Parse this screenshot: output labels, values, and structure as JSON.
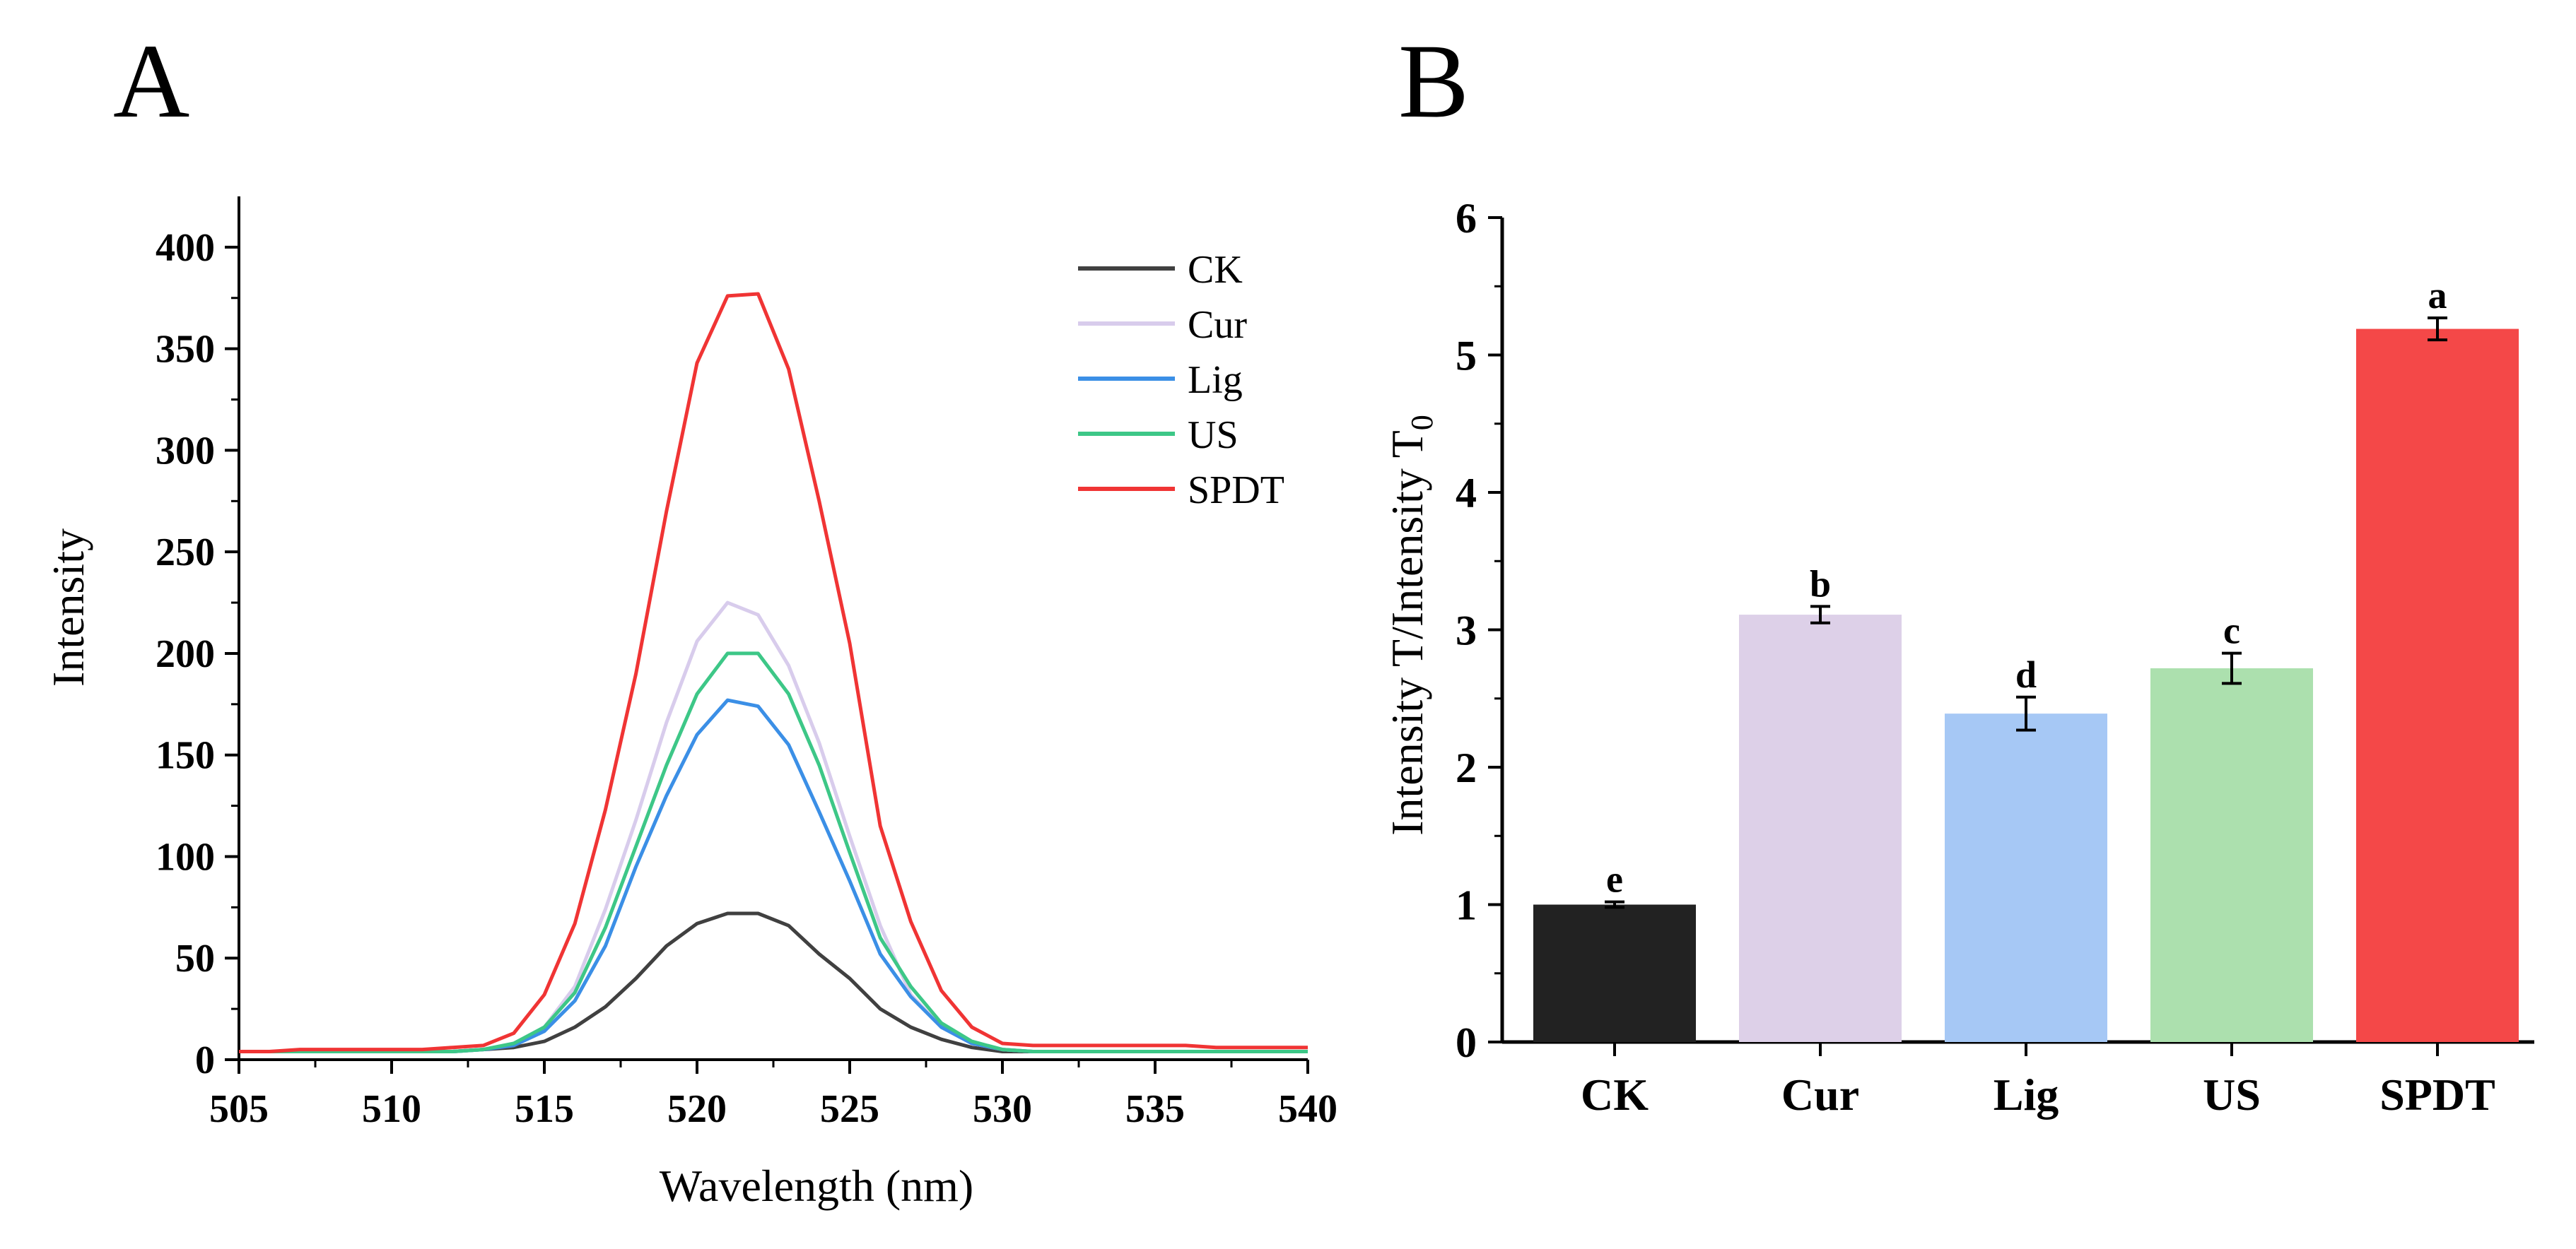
{
  "panel_labels": {
    "a": "A",
    "b": "B"
  },
  "chart_data": [
    {
      "type": "line",
      "panel": "A",
      "title": "",
      "xlabel": "Wavelength (nm)",
      "ylabel": "Intensity",
      "xlim": [
        505,
        540
      ],
      "ylim": [
        0,
        425
      ],
      "xticks": [
        505,
        510,
        515,
        520,
        525,
        530,
        535,
        540
      ],
      "yticks": [
        0,
        50,
        100,
        150,
        200,
        250,
        300,
        350,
        400
      ],
      "legend_position": "top-right",
      "x": [
        505,
        506,
        507,
        508,
        509,
        510,
        511,
        512,
        513,
        514,
        515,
        516,
        517,
        518,
        519,
        520,
        521,
        522,
        523,
        524,
        525,
        526,
        527,
        528,
        529,
        530,
        531,
        532,
        533,
        534,
        535,
        536,
        537,
        538,
        539,
        540
      ],
      "series": [
        {
          "name": "CK",
          "color": "#404040",
          "values": [
            4,
            4,
            4,
            4,
            4,
            4,
            4,
            4,
            5,
            6,
            9,
            16,
            26,
            40,
            56,
            67,
            72,
            72,
            66,
            52,
            40,
            25,
            16,
            10,
            6,
            4,
            4,
            4,
            4,
            4,
            4,
            4,
            4,
            4,
            4,
            4
          ]
        },
        {
          "name": "Cur",
          "color": "#d8ccec",
          "values": [
            4,
            4,
            4,
            4,
            4,
            4,
            4,
            4,
            5,
            8,
            16,
            36,
            74,
            118,
            166,
            206,
            225,
            219,
            194,
            156,
            110,
            66,
            32,
            16,
            8,
            5,
            4,
            4,
            4,
            4,
            4,
            4,
            4,
            4,
            4,
            4
          ]
        },
        {
          "name": "Lig",
          "color": "#3b8fe6",
          "values": [
            4,
            4,
            4,
            4,
            4,
            4,
            4,
            4,
            5,
            7,
            14,
            29,
            56,
            95,
            130,
            160,
            177,
            174,
            155,
            122,
            88,
            52,
            31,
            16,
            8,
            5,
            4,
            4,
            4,
            4,
            4,
            4,
            4,
            4,
            4,
            4
          ]
        },
        {
          "name": "US",
          "color": "#3dc787",
          "values": [
            4,
            4,
            4,
            4,
            4,
            4,
            4,
            4,
            5,
            8,
            16,
            33,
            65,
            105,
            145,
            180,
            200,
            200,
            180,
            145,
            102,
            60,
            36,
            18,
            9,
            5,
            4,
            4,
            4,
            4,
            4,
            4,
            4,
            4,
            4,
            4
          ]
        },
        {
          "name": "SPDT",
          "color": "#f03434",
          "values": [
            4,
            4,
            5,
            5,
            5,
            5,
            5,
            6,
            7,
            13,
            32,
            67,
            123,
            190,
            270,
            343,
            376,
            377,
            340,
            275,
            205,
            115,
            68,
            34,
            16,
            8,
            7,
            7,
            7,
            7,
            7,
            7,
            6,
            6,
            6,
            6
          ]
        }
      ]
    },
    {
      "type": "bar",
      "panel": "B",
      "title": "",
      "xlabel": "",
      "ylabel": "Intensity T/Intensity T",
      "ylabel_sub": "0",
      "ylim": [
        0,
        6
      ],
      "yticks": [
        0,
        1,
        2,
        3,
        4,
        5,
        6
      ],
      "categories": [
        "CK",
        "Cur",
        "Lig",
        "US",
        "SPDT"
      ],
      "values": [
        1.0,
        3.11,
        2.39,
        2.72,
        5.19
      ],
      "errors": [
        0.02,
        0.06,
        0.12,
        0.11,
        0.08
      ],
      "letters": [
        "e",
        "b",
        "d",
        "c",
        "a"
      ],
      "colors": [
        "#222222",
        "#ddd0e8",
        "#a6c8f5",
        "#ace0ae",
        "#f44848"
      ]
    }
  ]
}
